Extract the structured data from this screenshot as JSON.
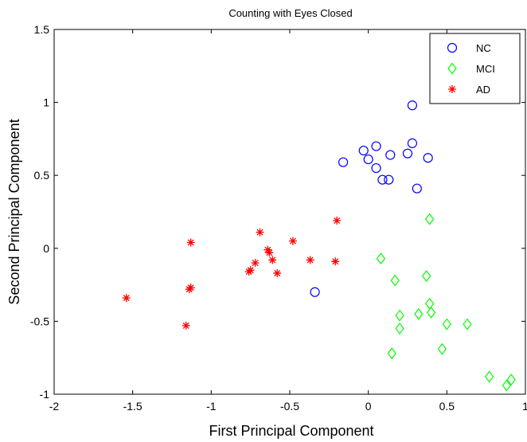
{
  "chart_data": {
    "type": "scatter",
    "title": "Counting with Eyes Closed",
    "xlabel": "First Principal Component",
    "ylabel": "Second Principal Component",
    "xlim": [
      -2,
      1
    ],
    "ylim": [
      -1,
      1.5
    ],
    "xticks": [
      -2,
      -1.5,
      -1,
      -0.5,
      0,
      0.5,
      1
    ],
    "yticks": [
      -1,
      -0.5,
      0,
      0.5,
      1,
      1.5
    ],
    "xtick_labels": [
      "-2",
      "-1.5",
      "-1",
      "-0.5",
      "0",
      "0.5",
      "1"
    ],
    "ytick_labels": [
      "-1",
      "-0.5",
      "0",
      "0.5",
      "1",
      "1.5"
    ],
    "grid": false,
    "legend_position": "top-right",
    "series": [
      {
        "name": "NC",
        "marker": "circle",
        "color": "#0000ff",
        "points": [
          [
            0.28,
            0.98
          ],
          [
            0.28,
            0.72
          ],
          [
            0.05,
            0.7
          ],
          [
            -0.03,
            0.67
          ],
          [
            0.25,
            0.65
          ],
          [
            0.14,
            0.64
          ],
          [
            0.38,
            0.62
          ],
          [
            0.0,
            0.61
          ],
          [
            -0.16,
            0.59
          ],
          [
            0.05,
            0.55
          ],
          [
            0.09,
            0.47
          ],
          [
            0.13,
            0.47
          ],
          [
            0.31,
            0.41
          ],
          [
            -0.34,
            -0.3
          ]
        ]
      },
      {
        "name": "MCI",
        "marker": "diamond",
        "color": "#00ff00",
        "points": [
          [
            0.39,
            0.2
          ],
          [
            0.08,
            -0.07
          ],
          [
            0.37,
            -0.19
          ],
          [
            0.17,
            -0.22
          ],
          [
            0.39,
            -0.38
          ],
          [
            0.4,
            -0.44
          ],
          [
            0.2,
            -0.46
          ],
          [
            0.32,
            -0.45
          ],
          [
            0.5,
            -0.52
          ],
          [
            0.63,
            -0.52
          ],
          [
            0.2,
            -0.55
          ],
          [
            0.47,
            -0.69
          ],
          [
            0.15,
            -0.72
          ],
          [
            0.77,
            -0.88
          ],
          [
            0.91,
            -0.9
          ],
          [
            0.88,
            -0.94
          ]
        ]
      },
      {
        "name": "AD",
        "marker": "asterisk",
        "color": "#ff0000",
        "points": [
          [
            -0.2,
            0.19
          ],
          [
            -0.69,
            0.11
          ],
          [
            -0.48,
            0.05
          ],
          [
            -1.13,
            0.04
          ],
          [
            -0.64,
            -0.01
          ],
          [
            -0.63,
            -0.03
          ],
          [
            -0.61,
            -0.08
          ],
          [
            -0.37,
            -0.08
          ],
          [
            -0.21,
            -0.09
          ],
          [
            -0.72,
            -0.1
          ],
          [
            -0.75,
            -0.15
          ],
          [
            -0.76,
            -0.16
          ],
          [
            -0.58,
            -0.17
          ],
          [
            -1.13,
            -0.27
          ],
          [
            -1.14,
            -0.28
          ],
          [
            -1.54,
            -0.34
          ],
          [
            -1.16,
            -0.53
          ]
        ]
      }
    ]
  }
}
